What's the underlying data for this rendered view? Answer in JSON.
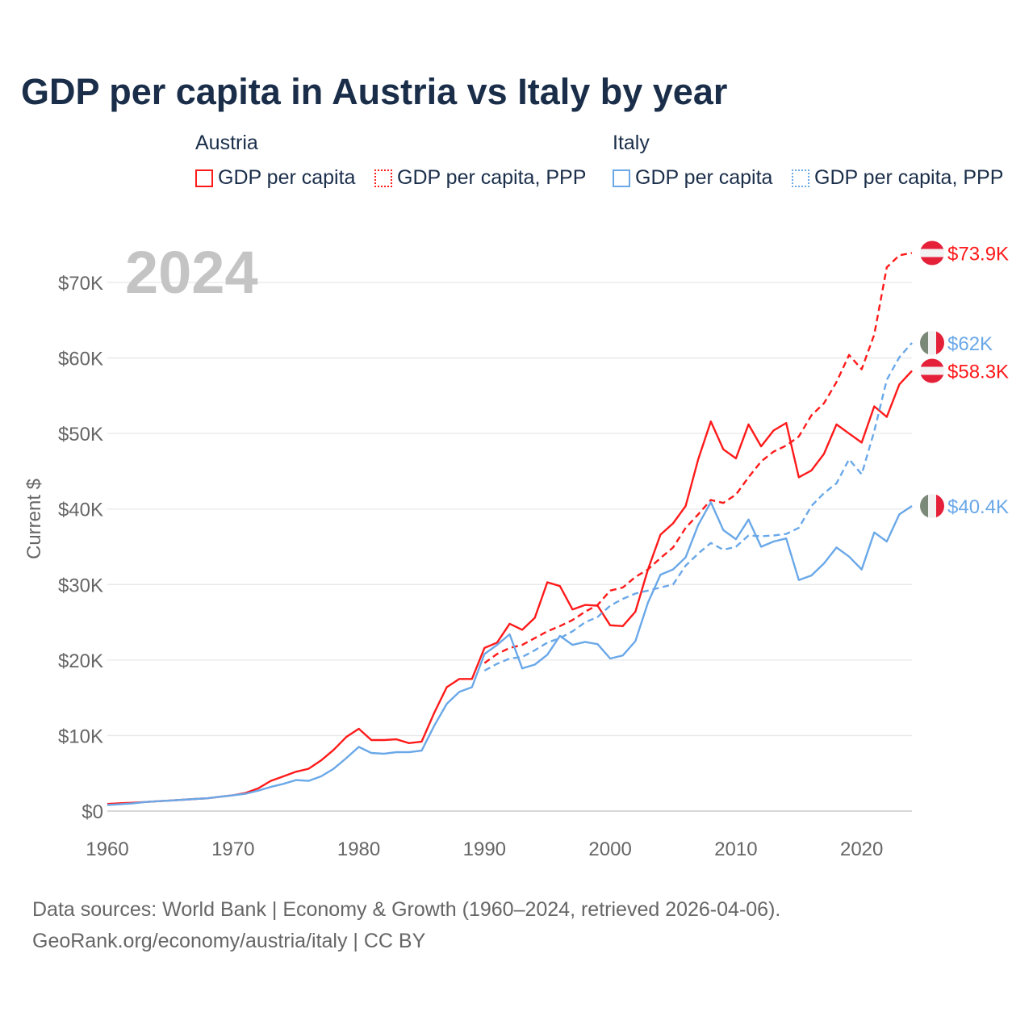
{
  "title": "GDP per capita in Austria vs Italy by year",
  "legend": {
    "groups": [
      {
        "name": "Austria",
        "items": [
          "GDP per capita",
          "GDP per capita, PPP"
        ]
      },
      {
        "name": "Italy",
        "items": [
          "GDP per capita",
          "GDP per capita, PPP"
        ]
      }
    ]
  },
  "source_line1": "Data sources: World Bank | Economy & Growth (1960–2024, retrieved 2026-04-06).",
  "source_line2": "GeoRank.org/economy/austria/italy | CC BY",
  "colors": {
    "austria": "#ff1a1a",
    "italy": "#6aa8e8",
    "title": "#1a2e4a",
    "year_watermark": "#c4c4c4"
  },
  "chart_data": {
    "type": "line",
    "title": "GDP per capita in Austria vs Italy by year",
    "year_label": "2024",
    "xlabel": "",
    "ylabel": "Current $",
    "xlim": [
      1960,
      2024
    ],
    "ylim": [
      0,
      75
    ],
    "y_unit": "thousand US$",
    "x_ticks": [
      "1960",
      "1970",
      "1980",
      "1990",
      "2000",
      "2010",
      "2020"
    ],
    "y_ticks": [
      "$0",
      "$10K",
      "$20K",
      "$30K",
      "$40K",
      "$50K",
      "$60K",
      "$70K"
    ],
    "grid": true,
    "series": [
      {
        "name": "Austria GDP per capita",
        "color": "#ff1a1a",
        "dash": false,
        "flag": "austria",
        "end_label": "$58.3K",
        "start": 1960,
        "values": [
          0.94,
          1.04,
          1.1,
          1.2,
          1.3,
          1.4,
          1.5,
          1.6,
          1.7,
          1.9,
          2.1,
          2.4,
          3.0,
          4.0,
          4.6,
          5.2,
          5.6,
          6.7,
          8.1,
          9.8,
          10.9,
          9.4,
          9.4,
          9.5,
          9.0,
          9.2,
          13.0,
          16.4,
          17.5,
          17.5,
          21.6,
          22.3,
          24.8,
          24.0,
          25.6,
          30.3,
          29.8,
          26.7,
          27.3,
          27.2,
          24.6,
          24.5,
          26.4,
          32.0,
          36.6,
          38.1,
          40.4,
          46.6,
          51.6,
          47.9,
          46.7,
          51.2,
          48.3,
          50.4,
          51.4,
          44.2,
          45.1,
          47.3,
          51.2,
          50.0,
          48.8,
          53.6,
          52.2,
          56.5,
          58.3
        ]
      },
      {
        "name": "Austria GDP per capita, PPP",
        "color": "#ff1a1a",
        "dash": true,
        "flag": "austria",
        "end_label": "$73.9K",
        "start": 1990,
        "values": [
          19.6,
          20.8,
          21.6,
          22.0,
          22.9,
          23.8,
          24.5,
          25.3,
          26.4,
          27.3,
          29.2,
          29.6,
          31.0,
          32.0,
          33.5,
          34.9,
          37.5,
          39.3,
          41.2,
          40.8,
          41.9,
          44.2,
          46.3,
          47.6,
          48.4,
          49.6,
          52.4,
          54.0,
          56.8,
          60.4,
          58.5,
          63.1,
          72.0,
          73.6,
          73.9
        ]
      },
      {
        "name": "Italy GDP per capita",
        "color": "#6aa8e8",
        "dash": false,
        "flag": "italy",
        "end_label": "$40.4K",
        "start": 1960,
        "values": [
          0.8,
          0.9,
          1.0,
          1.2,
          1.3,
          1.4,
          1.5,
          1.6,
          1.7,
          1.9,
          2.1,
          2.3,
          2.7,
          3.2,
          3.6,
          4.1,
          4.0,
          4.6,
          5.6,
          7.0,
          8.5,
          7.7,
          7.6,
          7.8,
          7.8,
          8.0,
          11.3,
          14.2,
          15.8,
          16.4,
          20.8,
          22.0,
          23.4,
          18.9,
          19.4,
          20.7,
          23.2,
          22.0,
          22.4,
          22.1,
          20.2,
          20.6,
          22.5,
          27.6,
          31.3,
          32.0,
          33.6,
          37.9,
          40.9,
          37.2,
          36.0,
          38.6,
          35.0,
          35.7,
          36.1,
          30.6,
          31.2,
          32.8,
          34.9,
          33.7,
          32.0,
          36.9,
          35.7,
          39.3,
          40.4
        ]
      },
      {
        "name": "Italy GDP per capita, PPP",
        "color": "#6aa8e8",
        "dash": true,
        "flag": "italy",
        "end_label": "$62K",
        "start": 1990,
        "values": [
          18.6,
          19.5,
          20.2,
          20.4,
          21.3,
          22.3,
          22.9,
          23.8,
          25.0,
          25.7,
          27.2,
          28.1,
          28.8,
          29.2,
          29.6,
          30.0,
          32.5,
          34.1,
          35.5,
          34.6,
          35.0,
          36.5,
          36.4,
          36.5,
          36.7,
          37.5,
          40.4,
          42.1,
          43.4,
          46.6,
          44.6,
          50.3,
          57.1,
          60.1,
          62.0
        ]
      }
    ]
  }
}
